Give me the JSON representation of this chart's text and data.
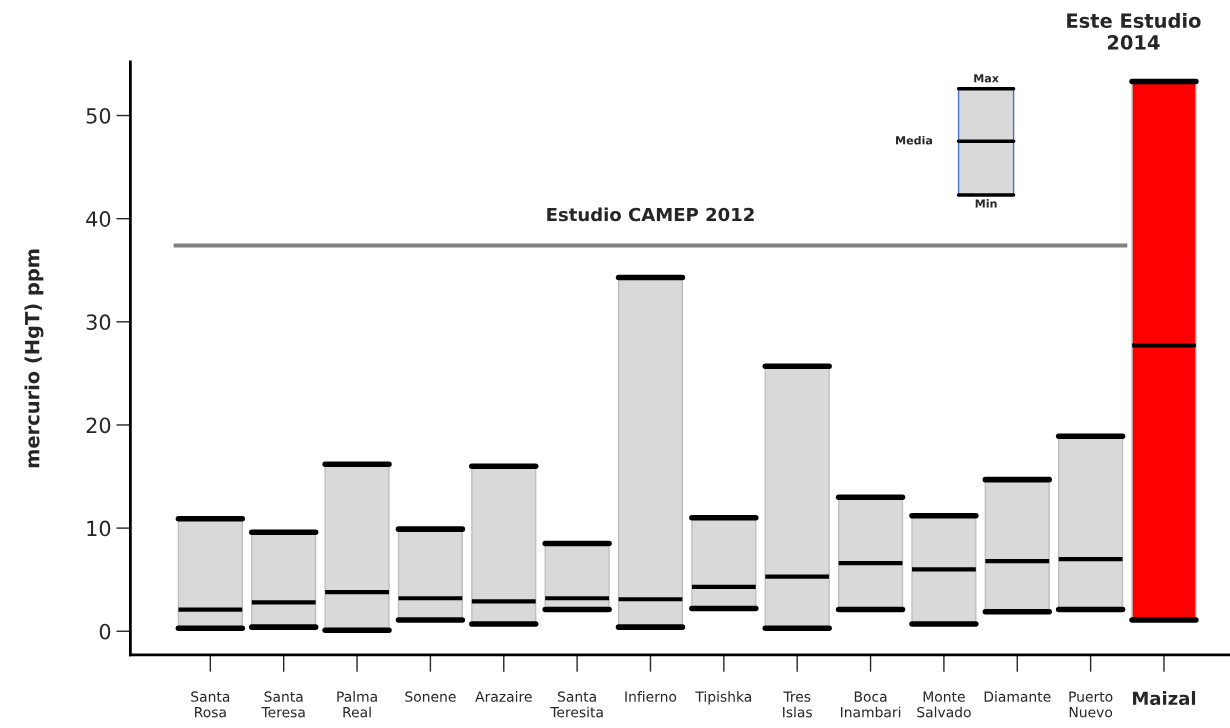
{
  "chart_data": {
    "type": "box",
    "ylabel": "mercurio (HgT) ppm",
    "categories": [
      "Santa\nRosa",
      "Santa\nTeresa",
      "Palma\nReal",
      "Sonene",
      "Arazaire",
      "Santa\nTeresita",
      "Infierno",
      "Tipishka",
      "Tres\nIslas",
      "Boca\nInambari",
      "Monte\nSalvado",
      "Diamante",
      "Puerto\nNuevo",
      "Maizal"
    ],
    "boxes": [
      {
        "low": 0.3,
        "q1": 0.3,
        "median": 2.1,
        "q3": 10.9,
        "high": 10.9
      },
      {
        "low": 0.4,
        "q1": 0.4,
        "median": 2.8,
        "q3": 9.6,
        "high": 9.6
      },
      {
        "low": 0.1,
        "q1": 0.1,
        "median": 3.8,
        "q3": 16.2,
        "high": 16.2
      },
      {
        "low": 1.1,
        "q1": 1.1,
        "median": 3.2,
        "q3": 9.9,
        "high": 9.9
      },
      {
        "low": 0.7,
        "q1": 0.7,
        "median": 2.9,
        "q3": 16.0,
        "high": 16.0
      },
      {
        "low": 2.1,
        "q1": 2.1,
        "median": 3.2,
        "q3": 8.5,
        "high": 8.5
      },
      {
        "low": 0.4,
        "q1": 0.4,
        "median": 3.1,
        "q3": 34.3,
        "high": 34.3
      },
      {
        "low": 2.2,
        "q1": 2.2,
        "median": 4.3,
        "q3": 11.0,
        "high": 11.0
      },
      {
        "low": 0.3,
        "q1": 0.3,
        "median": 5.3,
        "q3": 25.7,
        "high": 25.7
      },
      {
        "low": 2.1,
        "q1": 2.1,
        "median": 6.6,
        "q3": 13.0,
        "high": 13.0
      },
      {
        "low": 0.7,
        "q1": 0.7,
        "median": 6.0,
        "q3": 11.2,
        "high": 11.2
      },
      {
        "low": 1.9,
        "q1": 1.9,
        "median": 6.8,
        "q3": 14.7,
        "high": 14.7
      },
      {
        "low": 2.1,
        "q1": 2.1,
        "median": 7.0,
        "q3": 18.9,
        "high": 18.9
      },
      {
        "low": 1.1,
        "q1": 1.1,
        "median": 27.7,
        "q3": 53.3,
        "high": 53.3
      }
    ],
    "colors": [
      "#d9d9d9",
      "#d9d9d9",
      "#d9d9d9",
      "#d9d9d9",
      "#d9d9d9",
      "#d9d9d9",
      "#d9d9d9",
      "#d9d9d9",
      "#d9d9d9",
      "#d9d9d9",
      "#d9d9d9",
      "#d9d9d9",
      "#d9d9d9",
      "#ff0000"
    ],
    "ylim": [
      -2.3,
      55.2
    ],
    "yticks": [
      0,
      10,
      20,
      30,
      40,
      50
    ],
    "ref_lines": [
      {
        "axis": "y",
        "value": 37.4,
        "label": "Estudio CAMEP 2012",
        "color": "#808080"
      }
    ],
    "annotations": [
      "Este Estudio\n2014",
      "Max",
      "Media",
      "Min"
    ],
    "grid": false,
    "legend": false
  }
}
